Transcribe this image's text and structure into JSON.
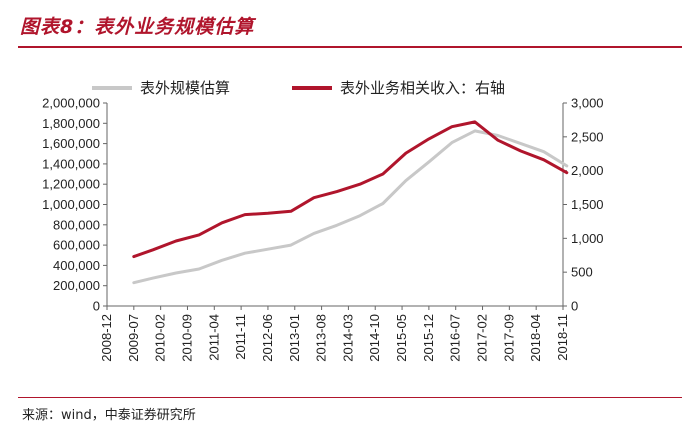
{
  "header": {
    "title": "图表8：表外业务规模估算"
  },
  "footer": {
    "source": "来源：wind，中泰证券研究所"
  },
  "colors": {
    "accent": "#b0152c",
    "series_scale": "#c8c8c8",
    "series_income": "#b0152c"
  },
  "chart_data": {
    "type": "line",
    "title": "",
    "categories": [
      "2008-12",
      "2009-07",
      "2010-02",
      "2010-09",
      "2011-04",
      "2011-11",
      "2012-06",
      "2013-01",
      "2013-08",
      "2014-03",
      "2014-10",
      "2015-05",
      "2015-12",
      "2016-07",
      "2017-02",
      "2017-09",
      "2018-04",
      "2018-11"
    ],
    "x": [
      "2009-07",
      "2009-12",
      "2010-06",
      "2010-12",
      "2011-06",
      "2011-12",
      "2012-06",
      "2012-12",
      "2013-06",
      "2013-12",
      "2014-06",
      "2014-12",
      "2015-06",
      "2015-12",
      "2016-06",
      "2016-12",
      "2017-06",
      "2017-12",
      "2018-06",
      "2018-12"
    ],
    "series": [
      {
        "name": "表外规模估算",
        "axis": "left",
        "values": [
          230000,
          275000,
          325000,
          365000,
          450000,
          520000,
          560000,
          600000,
          715000,
          795000,
          890000,
          1010000,
          1235000,
          1420000,
          1610000,
          1725000,
          1680000,
          1600000,
          1520000,
          1380000
        ]
      },
      {
        "name": "表外业务相关收入：右轴",
        "axis": "right",
        "values": [
          730,
          830,
          960,
          1050,
          1230,
          1350,
          1370,
          1400,
          1600,
          1690,
          1800,
          1950,
          2260,
          2470,
          2650,
          2720,
          2450,
          2290,
          2160,
          1970
        ]
      }
    ],
    "y_left": {
      "ticks": [
        "0",
        "200,000",
        "400,000",
        "600,000",
        "800,000",
        "1,000,000",
        "1,200,000",
        "1,400,000",
        "1,600,000",
        "1,800,000",
        "2,000,000"
      ],
      "range": [
        0,
        2000000
      ]
    },
    "y_right": {
      "ticks": [
        "0",
        "500",
        "1,000",
        "1,500",
        "2,000",
        "2,500",
        "3,000"
      ],
      "range": [
        0,
        3000
      ]
    },
    "xlabel": "",
    "ylabel": "",
    "grid": false,
    "legend_position": "top"
  }
}
